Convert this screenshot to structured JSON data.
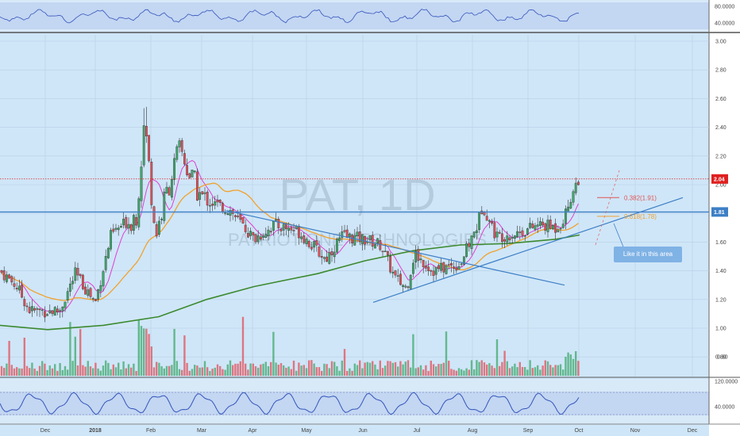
{
  "chart_data": {
    "type": "candlestick",
    "symbol_watermark": "PAT, 1D",
    "name_watermark": "PATRIOT ONE TECHNOLOGIES",
    "price_axis": {
      "ticks": [
        "3.00",
        "2.80",
        "2.60",
        "2.40",
        "2.20",
        "2.00",
        "1.80",
        "1.60",
        "1.40",
        "1.20",
        "1.00",
        "0.80"
      ],
      "range": [
        0.7,
        3.05
      ]
    },
    "x_axis": {
      "labels": [
        "Dec",
        "2018",
        "Feb",
        "Mar",
        "Apr",
        "May",
        "Jun",
        "Jul",
        "Aug",
        "Sep",
        "Oct",
        "Nov",
        "Dec"
      ]
    },
    "last_price": "2.04",
    "support_level": "1.81",
    "fib_levels": [
      {
        "label": "0.382(1.91)",
        "value": 1.91,
        "color": "#e05555"
      },
      {
        "label": "0.618(1.78)",
        "value": 1.78,
        "color": "#f0a030"
      }
    ],
    "annotation": "Like it in this area",
    "upper_indicator": {
      "ticks": [
        "80.0000",
        "40.0000"
      ]
    },
    "lower_indicator": {
      "ticks": [
        "120.0000",
        "40.0000"
      ]
    },
    "volume_label": "0.80",
    "colors": {
      "up": "#3fa86b",
      "down": "#e2505a",
      "ma_fast": "#e040d0",
      "ma_mid": "#f2a12d",
      "ma_slow": "#3c8a2f",
      "trendline": "#3d7fc6",
      "support": "#3d7fc6",
      "last_price_line": "#e02020",
      "oscillator": "#3355bb"
    }
  }
}
